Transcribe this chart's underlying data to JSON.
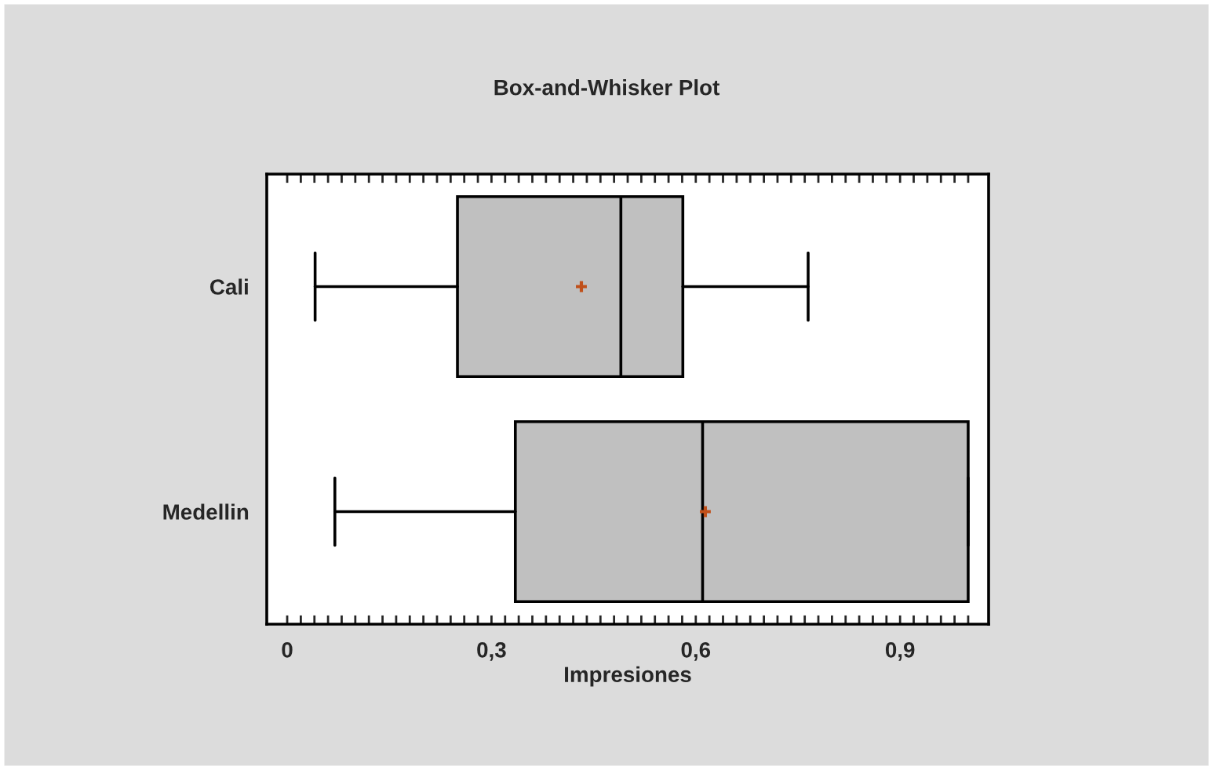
{
  "chart_data": {
    "type": "box",
    "title": "Box-and-Whisker Plot",
    "xlabel": "Impresiones",
    "orientation": "horizontal",
    "categories": [
      "Cali",
      "Medellin"
    ],
    "boxes": [
      {
        "low": 0.041,
        "q1": 0.25,
        "median": 0.49,
        "q3": 0.581,
        "high": 0.765,
        "mean": 0.432
      },
      {
        "low": 0.07,
        "q1": 0.335,
        "median": 0.61,
        "q3": 1.0,
        "high": 1.0,
        "mean": 0.614
      }
    ],
    "color": "#c0c0c0",
    "xlim": [
      -0.03,
      1.03
    ],
    "xticks": [
      {
        "value": 0,
        "label": "0"
      },
      {
        "value": 0.02,
        "label": null
      },
      {
        "value": 0.04,
        "label": null
      },
      {
        "value": 0.06,
        "label": null
      },
      {
        "value": 0.08,
        "label": null
      },
      {
        "value": 0.1,
        "label": null
      },
      {
        "value": 0.12,
        "label": null
      },
      {
        "value": 0.14,
        "label": null
      },
      {
        "value": 0.16,
        "label": null
      },
      {
        "value": 0.18,
        "label": null
      },
      {
        "value": 0.2,
        "label": null
      },
      {
        "value": 0.22,
        "label": null
      },
      {
        "value": 0.24,
        "label": null
      },
      {
        "value": 0.26,
        "label": null
      },
      {
        "value": 0.28,
        "label": null
      },
      {
        "value": 0.3,
        "label": "0,3"
      },
      {
        "value": 0.32,
        "label": null
      },
      {
        "value": 0.34,
        "label": null
      },
      {
        "value": 0.36,
        "label": null
      },
      {
        "value": 0.38,
        "label": null
      },
      {
        "value": 0.4,
        "label": null
      },
      {
        "value": 0.42,
        "label": null
      },
      {
        "value": 0.44,
        "label": null
      },
      {
        "value": 0.46,
        "label": null
      },
      {
        "value": 0.48,
        "label": null
      },
      {
        "value": 0.5,
        "label": null
      },
      {
        "value": 0.52,
        "label": null
      },
      {
        "value": 0.54,
        "label": null
      },
      {
        "value": 0.56,
        "label": null
      },
      {
        "value": 0.58,
        "label": null
      },
      {
        "value": 0.6,
        "label": "0,6"
      },
      {
        "value": 0.62,
        "label": null
      },
      {
        "value": 0.64,
        "label": null
      },
      {
        "value": 0.66,
        "label": null
      },
      {
        "value": 0.68,
        "label": null
      },
      {
        "value": 0.7,
        "label": null
      },
      {
        "value": 0.72,
        "label": null
      },
      {
        "value": 0.74,
        "label": null
      },
      {
        "value": 0.76,
        "label": null
      },
      {
        "value": 0.78,
        "label": null
      },
      {
        "value": 0.8,
        "label": null
      },
      {
        "value": 0.82,
        "label": null
      },
      {
        "value": 0.84,
        "label": null
      },
      {
        "value": 0.86,
        "label": null
      },
      {
        "value": 0.88,
        "label": null
      },
      {
        "value": 0.9,
        "label": "0,9"
      },
      {
        "value": 0.92,
        "label": null
      },
      {
        "value": 0.94,
        "label": null
      },
      {
        "value": 0.96,
        "label": null
      },
      {
        "value": 0.98,
        "label": null
      },
      {
        "value": 1.0,
        "label": null
      }
    ],
    "grid": false
  }
}
